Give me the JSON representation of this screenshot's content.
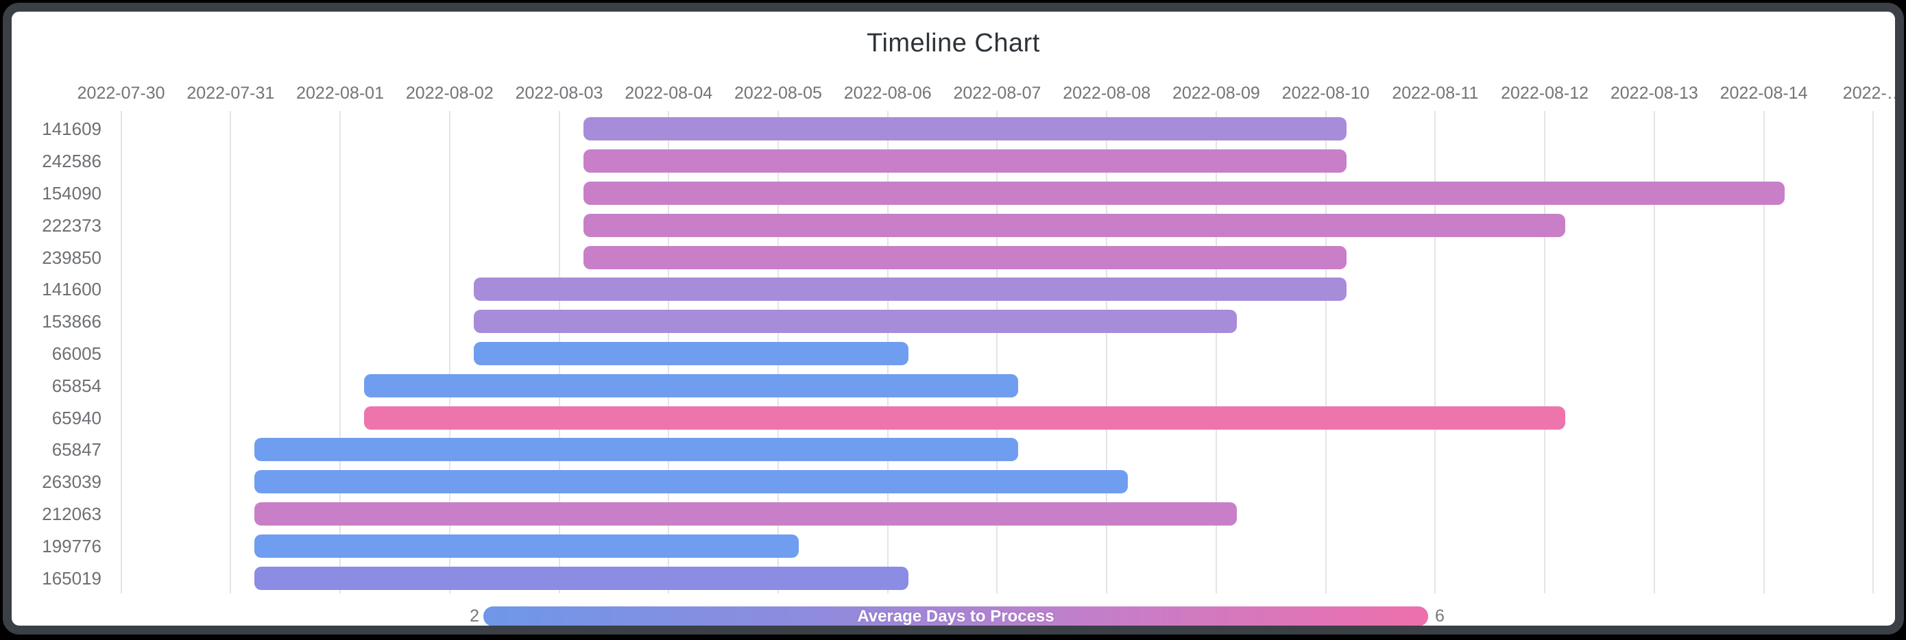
{
  "chart_data": {
    "type": "bar",
    "variant": "horizontal-timeline-gantt",
    "title": "Timeline Chart",
    "x_axis": {
      "start_date": "2022-07-30",
      "tick_labels": [
        "2022-07-30",
        "2022-07-31",
        "2022-08-01",
        "2022-08-02",
        "2022-08-03",
        "2022-08-04",
        "2022-08-05",
        "2022-08-06",
        "2022-08-07",
        "2022-08-08",
        "2022-08-09",
        "2022-08-10",
        "2022-08-11",
        "2022-08-12",
        "2022-08-13",
        "2022-08-14",
        "2022-…"
      ],
      "grid": "vertical-lines-on"
    },
    "rows": [
      {
        "id": "141609",
        "start": "2022-08-03",
        "end": "2022-08-10",
        "color": "#a78cd9"
      },
      {
        "id": "242586",
        "start": "2022-08-03",
        "end": "2022-08-10",
        "color": "#c87fc8"
      },
      {
        "id": "154090",
        "start": "2022-08-03",
        "end": "2022-08-14",
        "color": "#c87fc8"
      },
      {
        "id": "222373",
        "start": "2022-08-03",
        "end": "2022-08-12",
        "color": "#c87fc8"
      },
      {
        "id": "239850",
        "start": "2022-08-03",
        "end": "2022-08-10",
        "color": "#c87fc8"
      },
      {
        "id": "141600",
        "start": "2022-08-02",
        "end": "2022-08-10",
        "color": "#a78cd9"
      },
      {
        "id": "153866",
        "start": "2022-08-02",
        "end": "2022-08-09",
        "color": "#a78cd9"
      },
      {
        "id": "66005",
        "start": "2022-08-02",
        "end": "2022-08-06",
        "color": "#6f9df0"
      },
      {
        "id": "65854",
        "start": "2022-08-01",
        "end": "2022-08-07",
        "color": "#6f9df0"
      },
      {
        "id": "65940",
        "start": "2022-08-01",
        "end": "2022-08-12",
        "color": "#ee74ac"
      },
      {
        "id": "65847",
        "start": "2022-07-31",
        "end": "2022-08-07",
        "color": "#6f9df0"
      },
      {
        "id": "263039",
        "start": "2022-07-31",
        "end": "2022-08-08",
        "color": "#6f9df0"
      },
      {
        "id": "212063",
        "start": "2022-07-31",
        "end": "2022-08-09",
        "color": "#c87fc8"
      },
      {
        "id": "199776",
        "start": "2022-07-31",
        "end": "2022-08-05",
        "color": "#6f9df0"
      },
      {
        "id": "165019",
        "start": "2022-07-31",
        "end": "2022-08-06",
        "color": "#8b8ce4"
      }
    ],
    "legend": {
      "label": "Average Days to Process",
      "min": "2",
      "max": "6",
      "gradient": [
        "#6f97e9",
        "#8f8bdd",
        "#c47ec9",
        "#ee6fac"
      ],
      "position": "bottom"
    }
  }
}
